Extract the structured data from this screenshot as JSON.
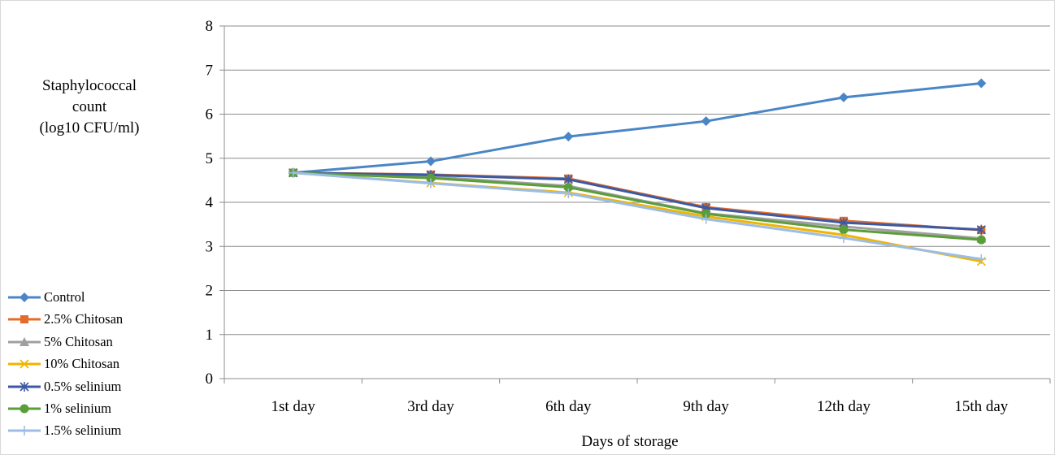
{
  "chart_data": {
    "type": "line",
    "xlabel": "Days of storage",
    "ylabel": [
      "Staphylococcal",
      "count",
      "(log10 CFU/ml)"
    ],
    "categories": [
      "1st day",
      "3rd day",
      "6th day",
      "9th day",
      "12th day",
      "15th day"
    ],
    "ylim": [
      0,
      8
    ],
    "yticks": [
      0,
      1,
      2,
      3,
      4,
      5,
      6,
      7,
      8
    ],
    "grid": true,
    "legend_position": "left",
    "series": [
      {
        "name": "Control",
        "color": "#4a86c5",
        "marker": "diamond",
        "values": [
          4.67,
          4.93,
          5.49,
          5.84,
          6.38,
          6.7
        ]
      },
      {
        "name": "2.5% Chitosan",
        "color": "#e46c2a",
        "marker": "square",
        "values": [
          4.67,
          4.63,
          4.54,
          3.89,
          3.58,
          3.37
        ]
      },
      {
        "name": "5% Chitosan",
        "color": "#a0a0a0",
        "marker": "triangle",
        "values": [
          4.67,
          4.58,
          4.37,
          3.75,
          3.45,
          3.18
        ]
      },
      {
        "name": "10% Chitosan",
        "color": "#f2b400",
        "marker": "x",
        "values": [
          4.67,
          4.44,
          4.22,
          3.68,
          3.26,
          2.66
        ]
      },
      {
        "name": "0.5% selinium",
        "color": "#3b5aa3",
        "marker": "asterisk",
        "values": [
          4.67,
          4.62,
          4.52,
          3.87,
          3.54,
          3.38
        ]
      },
      {
        "name": "1% selinium",
        "color": "#5a9e3a",
        "marker": "circle",
        "values": [
          4.67,
          4.55,
          4.34,
          3.74,
          3.38,
          3.15
        ]
      },
      {
        "name": "1.5% selinium",
        "color": "#9bbde6",
        "marker": "plus",
        "values": [
          4.67,
          4.43,
          4.2,
          3.62,
          3.19,
          2.71
        ]
      }
    ]
  }
}
